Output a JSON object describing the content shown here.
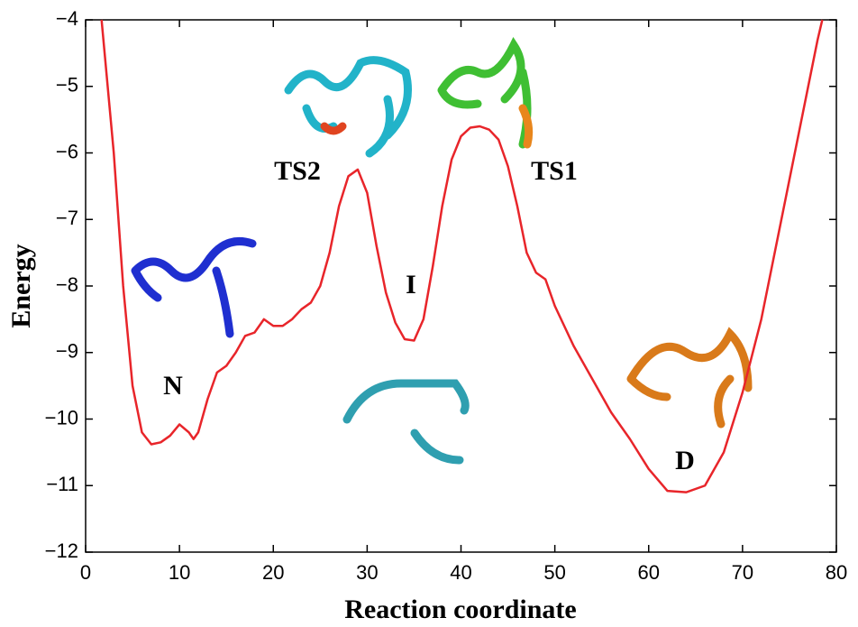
{
  "chart_data": {
    "type": "line",
    "xlabel": "Reaction coordinate",
    "ylabel": "Energy",
    "color": "#e8252a",
    "x": [
      1.7,
      3,
      4,
      5,
      6,
      7,
      8,
      9,
      10,
      11,
      11.5,
      12,
      13,
      14,
      15,
      16,
      17,
      18,
      19,
      20,
      21,
      22,
      23,
      24,
      25,
      26,
      27,
      28,
      29,
      30,
      31,
      32,
      33,
      34,
      35,
      36,
      37,
      38,
      39,
      40,
      41,
      42,
      43,
      44,
      45,
      46,
      47,
      48,
      49,
      50,
      52,
      54,
      56,
      58,
      60,
      62,
      64,
      66,
      68,
      70,
      72,
      74,
      76,
      78,
      78.5
    ],
    "values": [
      -4,
      -6,
      -8,
      -9.5,
      -10.2,
      -10.38,
      -10.35,
      -10.25,
      -10.08,
      -10.2,
      -10.3,
      -10.2,
      -9.7,
      -9.3,
      -9.2,
      -9.0,
      -8.75,
      -8.7,
      -8.5,
      -8.6,
      -8.6,
      -8.5,
      -8.35,
      -8.25,
      -8.0,
      -7.5,
      -6.8,
      -6.35,
      -6.25,
      -6.6,
      -7.4,
      -8.1,
      -8.55,
      -8.8,
      -8.82,
      -8.5,
      -7.7,
      -6.8,
      -6.1,
      -5.75,
      -5.62,
      -5.6,
      -5.65,
      -5.8,
      -6.2,
      -6.8,
      -7.5,
      -7.8,
      -7.9,
      -8.3,
      -8.9,
      -9.4,
      -9.9,
      -10.3,
      -10.75,
      -11.08,
      -11.1,
      -11.0,
      -10.5,
      -9.6,
      -8.5,
      -7.1,
      -5.7,
      -4.3,
      -4
    ],
    "xlim": [
      0,
      80
    ],
    "ylim": [
      -12,
      -4
    ],
    "xticks": [
      0,
      10,
      20,
      30,
      40,
      50,
      60,
      70,
      80
    ],
    "yticks": [
      {
        "value": -12,
        "label": "−12"
      },
      {
        "value": -11,
        "label": "−11"
      },
      {
        "value": -10,
        "label": "−10"
      },
      {
        "value": -9,
        "label": "−9"
      },
      {
        "value": -8,
        "label": "−8"
      },
      {
        "value": -7,
        "label": "−7"
      },
      {
        "value": -6,
        "label": "−6"
      },
      {
        "value": -5,
        "label": "−5"
      },
      {
        "value": -4,
        "label": "−4"
      }
    ],
    "annotations": [
      "TS2",
      "TS1",
      "N",
      "I",
      "D"
    ]
  }
}
